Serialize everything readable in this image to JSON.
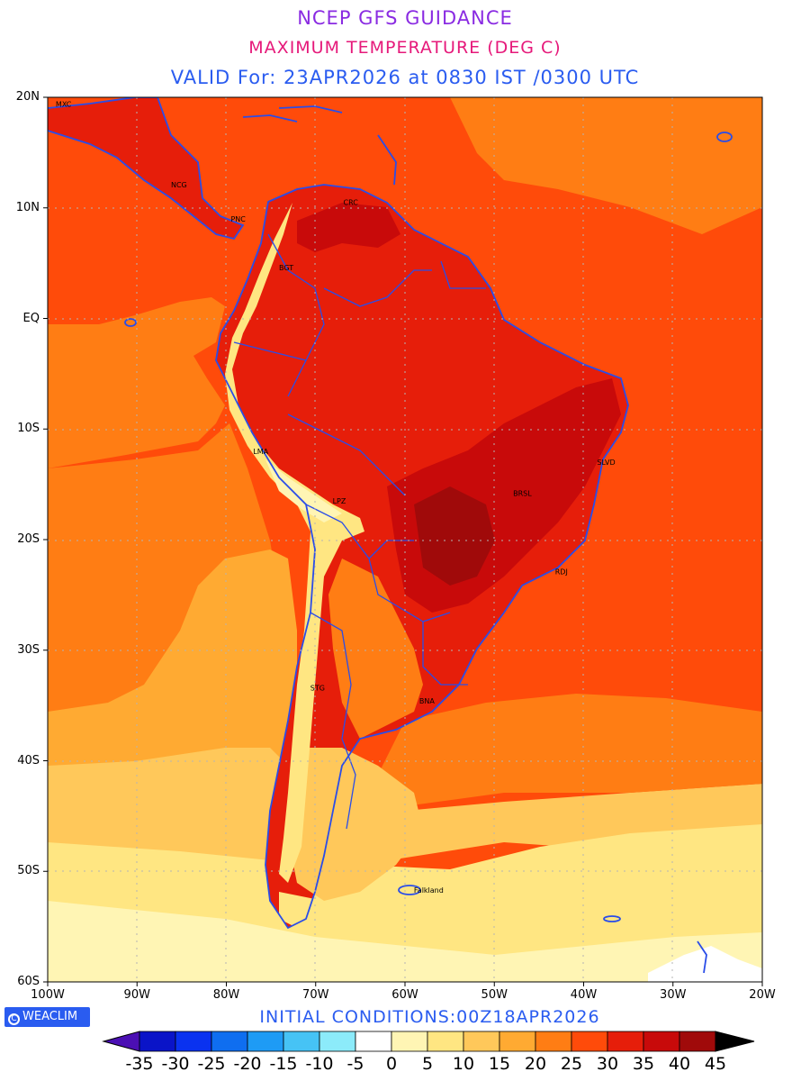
{
  "title": {
    "line1": "NCEP GFS GUIDANCE",
    "line2": "MAXIMUM TEMPERATURE (DEG C)",
    "line3": "VALID For: 23APR2026 at 0830 IST /0300 UTC"
  },
  "footer": {
    "initial_conditions": "INITIAL CONDITIONS:00Z18APR2026",
    "logo_text": "WEACLIM",
    "logo_symbol": "C"
  },
  "axes": {
    "lat_labels": [
      "20N",
      "10N",
      "EQ",
      "10S",
      "20S",
      "30S",
      "40S",
      "50S",
      "60S"
    ],
    "lon_labels": [
      "100W",
      "90W",
      "80W",
      "70W",
      "60W",
      "50W",
      "40W",
      "30W",
      "20W"
    ]
  },
  "cities": [
    {
      "name": "MXC",
      "lon": -99.1,
      "lat": 19.4
    },
    {
      "name": "NCG",
      "lon": -86.2,
      "lat": 12.1
    },
    {
      "name": "PNC",
      "lon": -79.5,
      "lat": 9.0
    },
    {
      "name": "CRC",
      "lon": -66.9,
      "lat": 10.5
    },
    {
      "name": "BGT",
      "lon": -74.1,
      "lat": 4.6
    },
    {
      "name": "LMA",
      "lon": -77.0,
      "lat": -12.0
    },
    {
      "name": "LPZ",
      "lon": -68.1,
      "lat": -16.5
    },
    {
      "name": "BRSL",
      "lon": -47.9,
      "lat": -15.8
    },
    {
      "name": "SLVD",
      "lon": -38.5,
      "lat": -13.0
    },
    {
      "name": "RDJ",
      "lon": -43.2,
      "lat": -22.9
    },
    {
      "name": "STG",
      "lon": -70.6,
      "lat": -33.4
    },
    {
      "name": "BNA",
      "lon": -58.4,
      "lat": -34.6
    },
    {
      "name": "Falkland",
      "lon": -59.0,
      "lat": -51.7
    }
  ],
  "legend": {
    "labels": [
      "-35",
      "-30",
      "-25",
      "-20",
      "-15",
      "-10",
      "-5",
      "0",
      "5",
      "10",
      "15",
      "20",
      "25",
      "30",
      "35",
      "40",
      "45"
    ],
    "colors": [
      "#4b0fb4",
      "#0a14c8",
      "#0a32f0",
      "#0f6ef0",
      "#1e9bf5",
      "#46c3f5",
      "#8cebfa",
      "#ffffff",
      "#fff5b4",
      "#ffe682",
      "#ffc85a",
      "#ffaa32",
      "#ff7d14",
      "#ff4b0a",
      "#e61e0a",
      "#c80a0a",
      "#a00a0a",
      "#000000"
    ]
  },
  "colors": {
    "coast": "#2a4de8",
    "grid": "#b4b4b4"
  }
}
